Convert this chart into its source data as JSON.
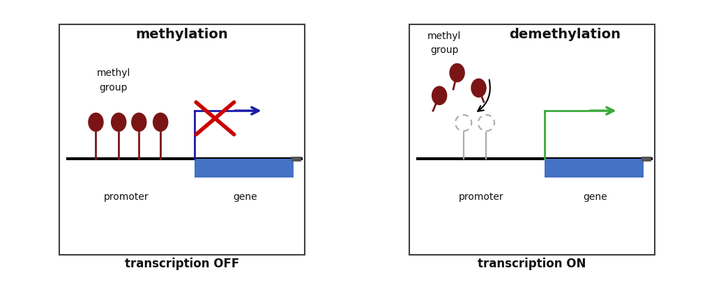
{
  "fig_width": 10.24,
  "fig_height": 4.18,
  "bg_color": "#ffffff",
  "border_color": "#404040",
  "methyl_color": "#7B1515",
  "methyl_stem_color": "#7B1515",
  "gene_blue": "#4472C4",
  "arrow_blue": "#1a1aaa",
  "arrow_green": "#3aaa3a",
  "arrow_red": "#cc0000",
  "text_color": "#111111",
  "panel1_title": "methylation",
  "panel2_title": "demethylation",
  "label_off": "transcription OFF",
  "label_on": "transcription ON",
  "promoter_label": "promoter",
  "gene_label": "gene",
  "methyl_label_line1": "methyl",
  "methyl_label_line2": "group"
}
